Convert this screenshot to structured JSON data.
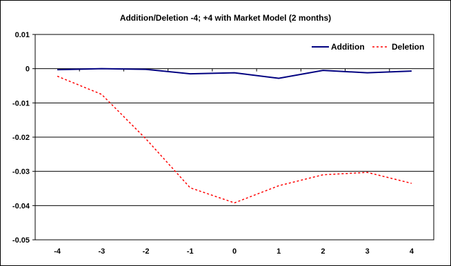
{
  "chart_data": {
    "type": "line",
    "title": "Addition/Deletion -4; +4 with Market Model (2 months)",
    "xlabel": "",
    "ylabel": "",
    "categories": [
      "-4",
      "-3",
      "-2",
      "-1",
      "0",
      "1",
      "2",
      "3",
      "4"
    ],
    "x": [
      -4,
      -3,
      -2,
      -1,
      0,
      1,
      2,
      3,
      4
    ],
    "ylim": [
      -0.05,
      0.01
    ],
    "yticks": [
      0.01,
      0,
      -0.01,
      -0.02,
      -0.03,
      -0.04,
      -0.05
    ],
    "ytick_labels": [
      "0.01",
      "0",
      "-0.01",
      "-0.02",
      "-0.03",
      "-0.04",
      "-0.05"
    ],
    "grid": "horizontal",
    "legend_position": "top-right",
    "series": [
      {
        "name": "Addition",
        "color": "#000080",
        "style": "solid",
        "values": [
          -0.0003,
          0.0,
          -0.0002,
          -0.0015,
          -0.0012,
          -0.0028,
          -0.0005,
          -0.0012,
          -0.0007
        ]
      },
      {
        "name": "Deletion",
        "color": "#ff0000",
        "style": "dotted",
        "values": [
          -0.0022,
          -0.0075,
          -0.0205,
          -0.0348,
          -0.0392,
          -0.0342,
          -0.031,
          -0.0303,
          -0.0335
        ]
      }
    ]
  }
}
